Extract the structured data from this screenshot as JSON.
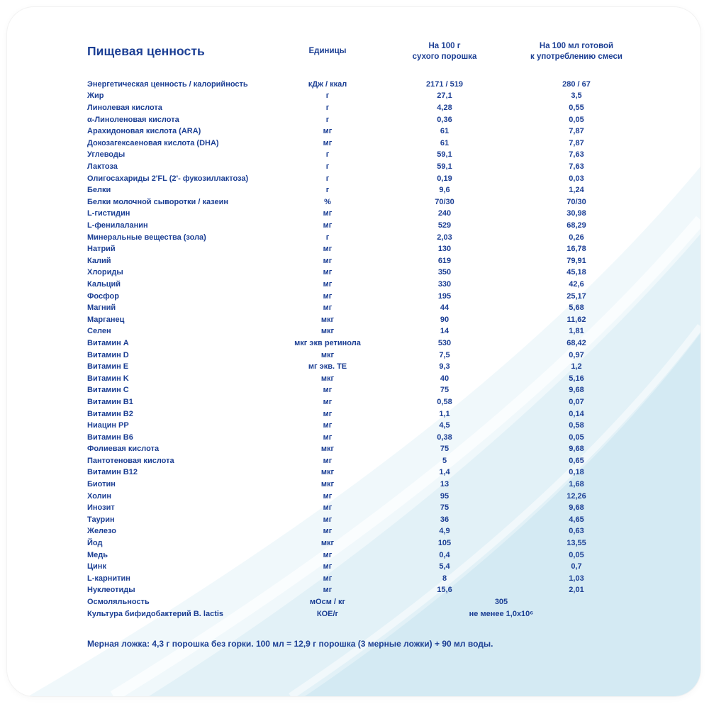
{
  "table": {
    "title": "Пищевая ценность",
    "columns": {
      "units": "Единицы",
      "per100g": "На 100 г\nсухого порошка",
      "per100ml": "На 100 мл готовой\nк употреблению смеси"
    },
    "rows": [
      {
        "name": "Энергетическая ценность / калорийность",
        "unit": "кДж / ккал",
        "g": "2171 / 519",
        "ml": "280 / 67"
      },
      {
        "name": "Жир",
        "unit": "г",
        "g": "27,1",
        "ml": "3,5"
      },
      {
        "name": "Линолевая кислота",
        "unit": "г",
        "g": "4,28",
        "ml": "0,55"
      },
      {
        "name": "α-Линоленовая кислота",
        "unit": "г",
        "g": "0,36",
        "ml": "0,05"
      },
      {
        "name": "Арахидоновая кислота (ARA)",
        "unit": "мг",
        "g": "61",
        "ml": "7,87"
      },
      {
        "name": "Докозагексаеновая кислота (DHA)",
        "unit": "мг",
        "g": "61",
        "ml": "7,87"
      },
      {
        "name": "Углеводы",
        "unit": "г",
        "g": "59,1",
        "ml": "7,63"
      },
      {
        "name": "Лактоза",
        "unit": "г",
        "g": "59,1",
        "ml": "7,63"
      },
      {
        "name": "Олигосахариды 2'FL (2'- фукозиллактоза)",
        "unit": "г",
        "g": "0,19",
        "ml": "0,03"
      },
      {
        "name": "Белки",
        "unit": "г",
        "g": "9,6",
        "ml": "1,24"
      },
      {
        "name": "Белки молочной сыворотки / казеин",
        "unit": "%",
        "g": "70/30",
        "ml": "70/30"
      },
      {
        "name": "L-гистидин",
        "unit": "мг",
        "g": "240",
        "ml": "30,98"
      },
      {
        "name": "L-фенилаланин",
        "unit": "мг",
        "g": "529",
        "ml": "68,29"
      },
      {
        "name": "Минеральные вещества (зола)",
        "unit": "г",
        "g": "2,03",
        "ml": "0,26"
      },
      {
        "name": "Натрий",
        "unit": "мг",
        "g": "130",
        "ml": "16,78"
      },
      {
        "name": "Калий",
        "unit": "мг",
        "g": "619",
        "ml": "79,91"
      },
      {
        "name": "Хлориды",
        "unit": "мг",
        "g": "350",
        "ml": "45,18"
      },
      {
        "name": "Кальций",
        "unit": "мг",
        "g": "330",
        "ml": "42,6"
      },
      {
        "name": "Фосфор",
        "unit": "мг",
        "g": "195",
        "ml": "25,17"
      },
      {
        "name": "Магний",
        "unit": "мг",
        "g": "44",
        "ml": "5,68"
      },
      {
        "name": "Марганец",
        "unit": "мкг",
        "g": "90",
        "ml": "11,62"
      },
      {
        "name": "Селен",
        "unit": "мкг",
        "g": "14",
        "ml": "1,81"
      },
      {
        "name": "Витамин A",
        "unit": "мкг экв ретинола",
        "g": "530",
        "ml": "68,42"
      },
      {
        "name": "Витамин D",
        "unit": "мкг",
        "g": "7,5",
        "ml": "0,97"
      },
      {
        "name": "Витамин E",
        "unit": "мг экв. ТЕ",
        "g": "9,3",
        "ml": "1,2"
      },
      {
        "name": "Витамин K",
        "unit": "мкг",
        "g": "40",
        "ml": "5,16"
      },
      {
        "name": "Витамин C",
        "unit": "мг",
        "g": "75",
        "ml": "9,68"
      },
      {
        "name": "Витамин B1",
        "unit": "мг",
        "g": "0,58",
        "ml": "0,07"
      },
      {
        "name": "Витамин B2",
        "unit": "мг",
        "g": "1,1",
        "ml": "0,14"
      },
      {
        "name": "Ниацин PP",
        "unit": "мг",
        "g": "4,5",
        "ml": "0,58"
      },
      {
        "name": "Витамин B6",
        "unit": "мг",
        "g": "0,38",
        "ml": "0,05"
      },
      {
        "name": "Фолиевая кислота",
        "unit": "мкг",
        "g": "75",
        "ml": "9,68"
      },
      {
        "name": "Пантотеновая кислота",
        "unit": "мг",
        "g": "5",
        "ml": "0,65"
      },
      {
        "name": "Витамин B12",
        "unit": "мкг",
        "g": "1,4",
        "ml": "0,18"
      },
      {
        "name": "Биотин",
        "unit": "мкг",
        "g": "13",
        "ml": "1,68"
      },
      {
        "name": "Холин",
        "unit": "мг",
        "g": "95",
        "ml": "12,26"
      },
      {
        "name": "Инозит",
        "unit": "мг",
        "g": "75",
        "ml": "9,68"
      },
      {
        "name": "Таурин",
        "unit": "мг",
        "g": "36",
        "ml": "4,65"
      },
      {
        "name": "Железо",
        "unit": "мг",
        "g": "4,9",
        "ml": "0,63"
      },
      {
        "name": "Йод",
        "unit": "мкг",
        "g": "105",
        "ml": "13,55"
      },
      {
        "name": "Медь",
        "unit": "мг",
        "g": "0,4",
        "ml": "0,05"
      },
      {
        "name": "Цинк",
        "unit": "мг",
        "g": "5,4",
        "ml": "0,7"
      },
      {
        "name": "L-карнитин",
        "unit": "мг",
        "g": "8",
        "ml": "1,03"
      },
      {
        "name": "Нуклеотиды",
        "unit": "мг",
        "g": "15,6",
        "ml": "2,01"
      }
    ],
    "span_rows": [
      {
        "name": "Осмоляльность",
        "unit": "мОсм / кг",
        "value": "305"
      },
      {
        "name": "Культура бифидобактерий B. lactis",
        "unit": "КОЕ/г",
        "value": "не менее 1,0х10⁶"
      }
    ],
    "footnote": "Мерная ложка: 4,3 г порошка без горки. 100 мл = 12,9 г порошка (3 мерные ложки) + 90 мл воды."
  },
  "colors": {
    "text_blue": "#1c3f94",
    "swoosh_light": "#f0f8fb",
    "swoosh_mid": "#e2f1f7",
    "swoosh_deep": "#d4eaf3"
  }
}
